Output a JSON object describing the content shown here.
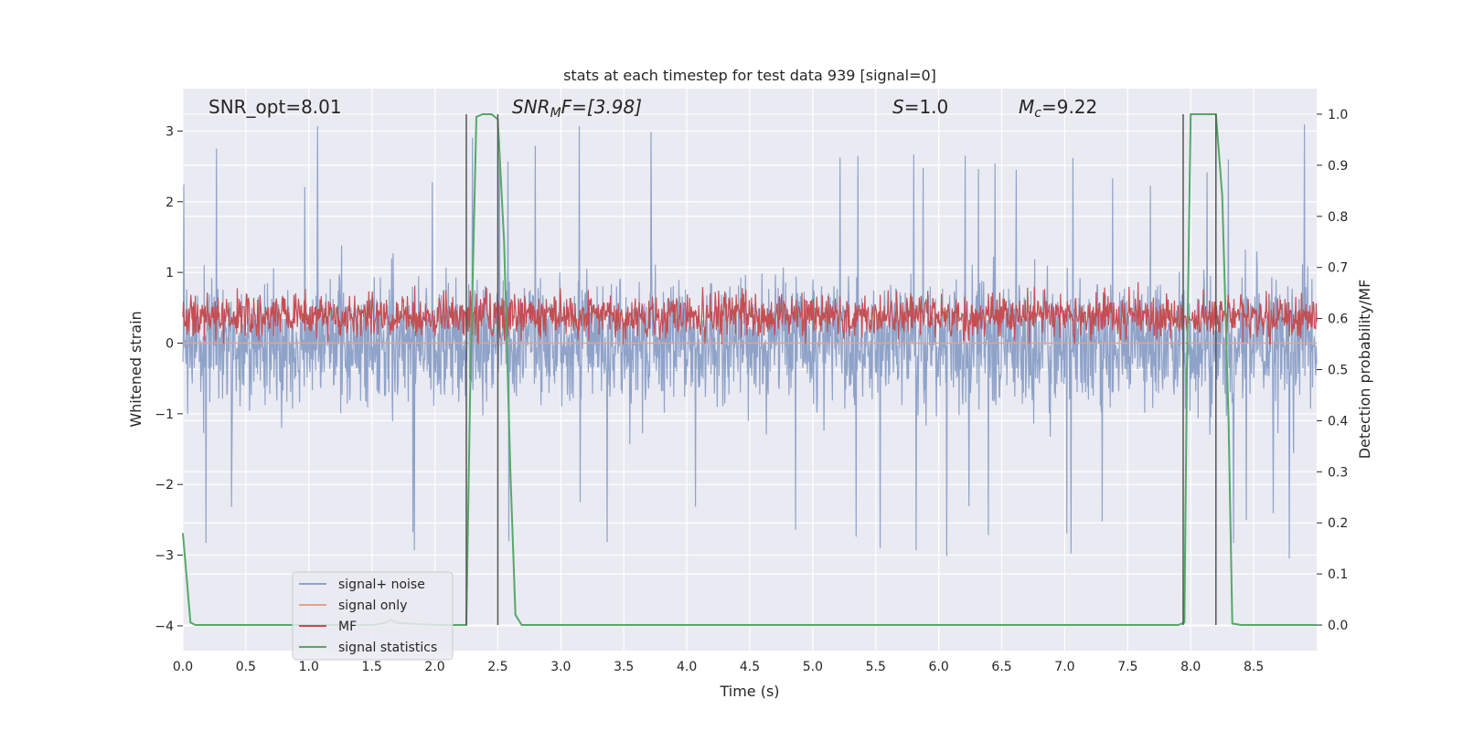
{
  "chart_data": {
    "type": "line",
    "title": "stats at each timestep for test data 939 [signal=0]",
    "xlabel": "Time (s)",
    "ylabel_left": "Whitened strain",
    "ylabel_right": "Detection probability/MF",
    "xlim": [
      0.0,
      9.0
    ],
    "ylim_left": [
      -4.35,
      3.6
    ],
    "ylim_right": [
      -0.05,
      1.05
    ],
    "xticks": [
      "0.0",
      "0.5",
      "1.0",
      "1.5",
      "2.0",
      "2.5",
      "3.0",
      "3.5",
      "4.0",
      "4.5",
      "5.0",
      "5.5",
      "6.0",
      "6.5",
      "7.0",
      "7.5",
      "8.0",
      "8.5"
    ],
    "yticks_left": [
      "−4",
      "−3",
      "−2",
      "−1",
      "0",
      "1",
      "2",
      "3"
    ],
    "yticks_right": [
      "0.0",
      "0.1",
      "0.2",
      "0.3",
      "0.4",
      "0.5",
      "0.6",
      "0.7",
      "0.8",
      "0.9",
      "1.0"
    ],
    "grid": true,
    "annotations": {
      "snr_opt": "SNR_opt=8.01",
      "snr_mf_base": "SNR",
      "snr_mf_sub": "M",
      "snr_mf_rest": "F=[3.98]",
      "s_base": "S",
      "s_rest": "=1.0",
      "mc_base": "M",
      "mc_sub": "c",
      "mc_rest": "=9.22"
    },
    "series": [
      {
        "name": "signal+ noise",
        "color": "#8fa3c9",
        "band": {
          "low": -1.2,
          "high": 1.2,
          "peak_low": -3.2,
          "peak_high": 3.2
        }
      },
      {
        "name": "signal only",
        "color": "#e8a28a",
        "y": 0.0
      },
      {
        "name": "MF",
        "color": "#c44e52",
        "axis": "right",
        "band": {
          "low": 0.555,
          "high": 0.655,
          "peak_high": 0.69
        }
      },
      {
        "name": "signal statistics",
        "color": "#55a868",
        "axis": "right",
        "x": [
          0.0,
          0.06,
          0.1,
          0.15,
          1.0,
          1.5,
          1.6,
          1.65,
          1.7,
          2.0,
          2.25,
          2.28,
          2.33,
          2.38,
          2.45,
          2.5,
          2.55,
          2.6,
          2.64,
          2.69,
          2.75,
          3.0,
          7.9,
          7.95,
          7.97,
          8.0,
          8.1,
          8.2,
          8.25,
          8.3,
          8.33,
          8.4,
          9.0
        ],
        "y": [
          0.18,
          0.005,
          0.0,
          0.0,
          0.0,
          0.0,
          0.004,
          0.01,
          0.004,
          0.0,
          0.0,
          0.45,
          0.995,
          1.0,
          1.0,
          0.99,
          0.75,
          0.3,
          0.02,
          0.0,
          0.0,
          0.0,
          0.0,
          0.005,
          0.5,
          1.0,
          1.0,
          1.0,
          0.84,
          0.4,
          0.003,
          0.0,
          0.0
        ]
      }
    ],
    "vertical_lines": [
      2.25,
      2.5,
      7.94,
      8.2
    ],
    "legend_position": "lower-left"
  }
}
